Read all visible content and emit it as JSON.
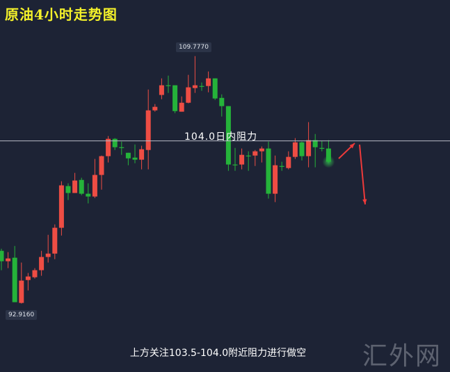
{
  "title": "原油4小时走势图",
  "resistance_label": "104.0日内阻力",
  "bottom_note": "上方关注103.5-104.0附近阻力进行做空",
  "watermark": "汇外网",
  "colors": {
    "background": "#1d2335",
    "up": "#ee4d44",
    "down": "#25b33a",
    "title": "#f4f12a",
    "resistance_line": "#b8bcc6",
    "arrow": "#ee3a3a"
  },
  "chart_data": {
    "type": "candlestick",
    "title": "原油4小时走势图",
    "ylim": [
      88.3,
      113.6
    ],
    "grid": false,
    "high_label": "109.7770",
    "low_label": "92.9160",
    "resistance": 104.0,
    "annotations": [
      "104.0日内阻力",
      "上方关注103.5-104.0附近阻力进行做空"
    ],
    "projection": "arrows: rebound up to ~104.0 then drop down",
    "ohlc": [
      [
        96.51,
        96.65,
        95.19,
        95.8
      ],
      [
        95.8,
        96.42,
        95.33,
        95.99
      ],
      [
        96.04,
        96.84,
        93.01,
        93.01
      ],
      [
        92.96,
        95.71,
        92.916,
        94.48
      ],
      [
        94.52,
        95.0,
        93.81,
        94.76
      ],
      [
        94.71,
        95.33,
        94.62,
        95.19
      ],
      [
        95.19,
        96.51,
        94.81,
        96.09
      ],
      [
        96.09,
        97.6,
        95.71,
        96.32
      ],
      [
        96.32,
        98.31,
        95.94,
        98.08
      ],
      [
        98.08,
        101.25,
        97.55,
        100.97
      ],
      [
        100.92,
        101.11,
        99.97,
        100.45
      ],
      [
        100.45,
        101.82,
        100.45,
        101.3
      ],
      [
        101.34,
        101.49,
        100.3,
        100.4
      ],
      [
        100.4,
        101.11,
        99.74,
        100.21
      ],
      [
        100.21,
        102.77,
        100.11,
        101.68
      ],
      [
        101.68,
        103.0,
        100.68,
        102.96
      ],
      [
        102.96,
        104.33,
        102.53,
        104.14
      ],
      [
        104.14,
        104.19,
        103.38,
        103.57
      ],
      [
        103.57,
        103.95,
        103.05,
        103.55
      ],
      [
        103.19,
        103.19,
        102.34,
        102.81
      ],
      [
        102.86,
        103.76,
        102.48,
        102.72
      ],
      [
        102.72,
        103.67,
        102.06,
        103.43
      ],
      [
        103.38,
        107.5,
        102.06,
        106.08
      ],
      [
        106.08,
        106.51,
        105.99,
        106.32
      ],
      [
        107.13,
        108.26,
        106.84,
        107.79
      ],
      [
        107.79,
        108.45,
        107.27,
        107.77
      ],
      [
        107.79,
        107.79,
        105.89,
        106.03
      ],
      [
        105.99,
        107.03,
        105.99,
        106.6
      ],
      [
        106.6,
        108.5,
        106.56,
        107.65
      ],
      [
        107.6,
        109.777,
        107.27,
        107.79
      ],
      [
        107.74,
        107.98,
        107.41,
        107.72
      ],
      [
        107.74,
        108.73,
        107.31,
        108.26
      ],
      [
        108.26,
        108.26,
        106.79,
        106.89
      ],
      [
        106.93,
        107.17,
        105.66,
        106.37
      ],
      [
        106.37,
        106.37,
        101.96,
        102.39
      ],
      [
        102.39,
        103.52,
        101.96,
        102.37
      ],
      [
        102.39,
        103.48,
        102.06,
        103.05
      ],
      [
        103.0,
        103.29,
        101.96,
        102.98
      ],
      [
        103.0,
        103.38,
        102.29,
        103.29
      ],
      [
        103.29,
        103.62,
        102.53,
        103.48
      ],
      [
        103.48,
        103.95,
        100.07,
        100.4
      ],
      [
        100.4,
        103.0,
        99.83,
        102.34
      ],
      [
        102.29,
        102.58,
        101.96,
        102.27
      ],
      [
        102.15,
        103.29,
        102.06,
        102.91
      ],
      [
        102.91,
        104.19,
        102.77,
        103.9
      ],
      [
        103.9,
        103.95,
        102.67,
        102.96
      ],
      [
        102.96,
        105.28,
        102.2,
        104.05
      ],
      [
        104.05,
        104.47,
        102.2,
        103.57
      ],
      [
        103.52,
        104.0,
        103.29,
        103.5
      ],
      [
        103.48,
        104.05,
        102.53,
        102.58
      ]
    ]
  }
}
